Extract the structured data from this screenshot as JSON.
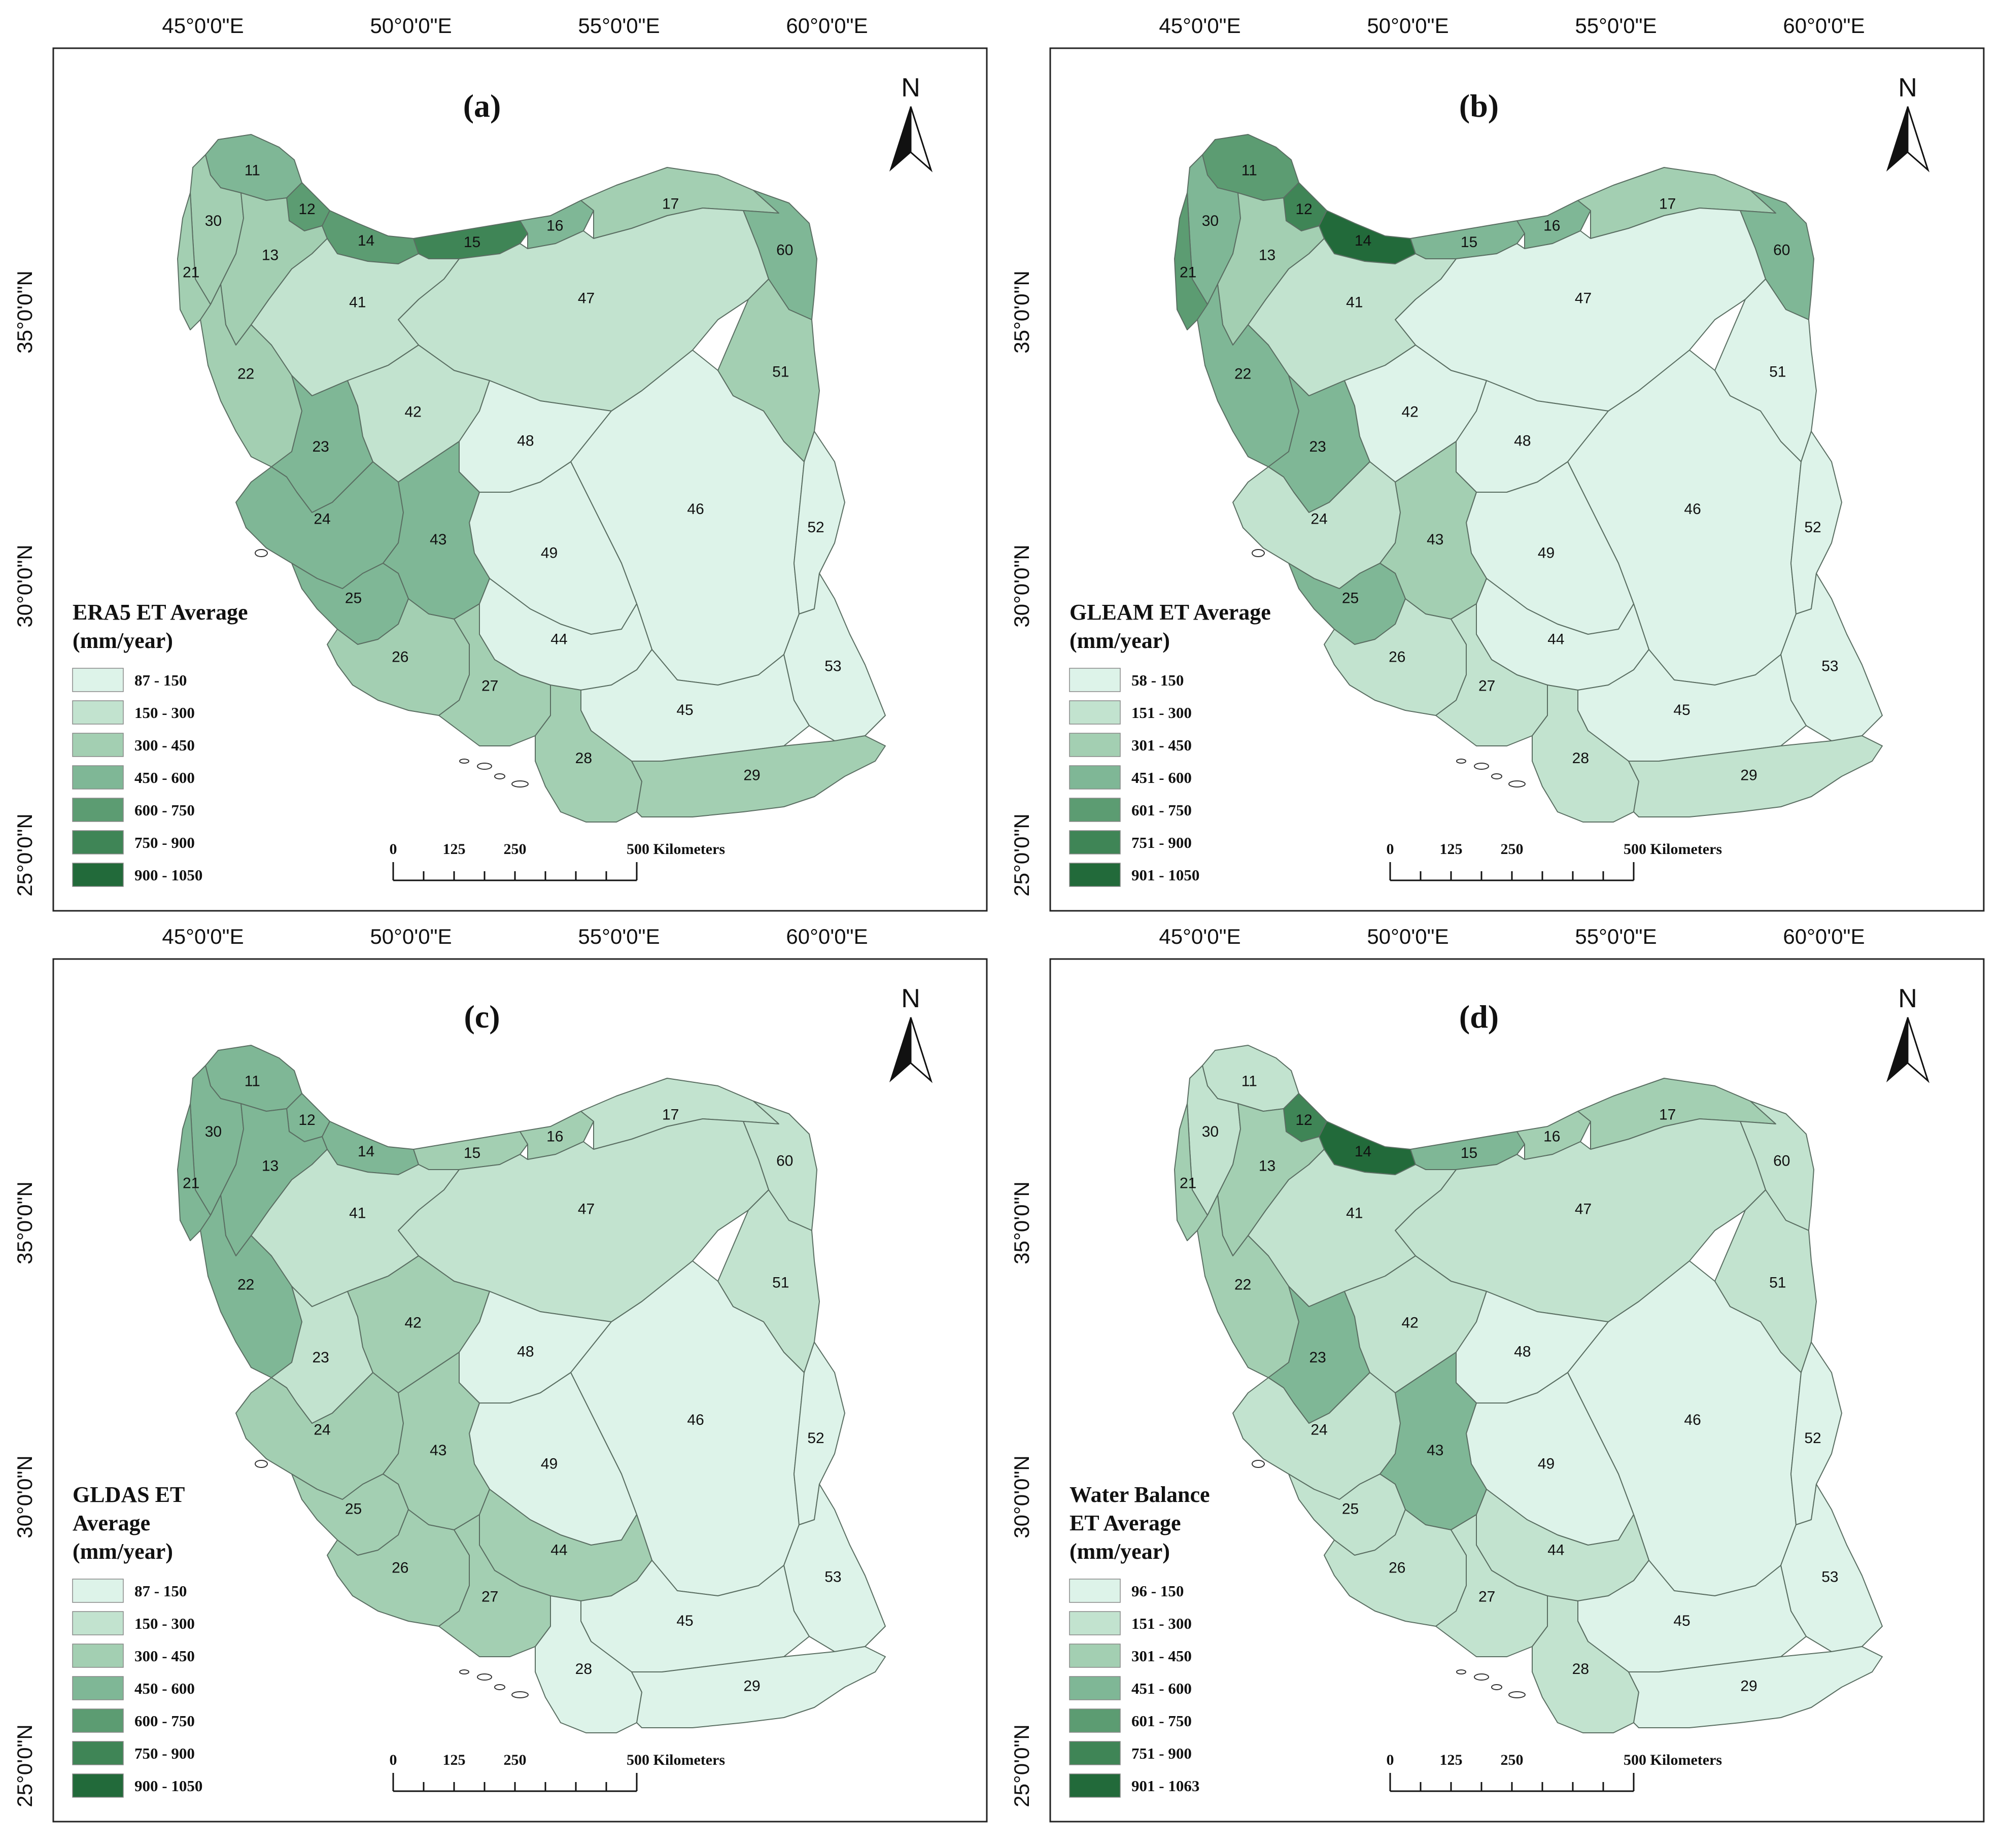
{
  "figure": {
    "lon_labels": [
      "45°0'0\"E",
      "50°0'0\"E",
      "55°0'0\"E",
      "60°0'0\"E"
    ],
    "lat_labels": [
      "35°0'0\"N",
      "30°0'0\"N",
      "25°0'0\"N"
    ],
    "north_label": "N",
    "scalebar": {
      "ticks": [
        "0",
        "125",
        "250"
      ],
      "end_label": "500 Kilometers"
    },
    "palette": [
      "#ddf3e9",
      "#c2e3cf",
      "#a3cfb2",
      "#7fb796",
      "#5c9c72",
      "#3f8556",
      "#226a3a"
    ],
    "panels": [
      {
        "id": "a",
        "title": "(a)",
        "legend_title": [
          "ERA5 ET Average",
          "(mm/year)"
        ],
        "legend_items": [
          "87 - 150",
          "150 - 300",
          "300 - 450",
          "450 - 600",
          "600 - 750",
          "750 - 900",
          "900 - 1050"
        ],
        "basins": {
          "11": 3,
          "12": 4,
          "13": 2,
          "14": 4,
          "15": 5,
          "16": 3,
          "17": 2,
          "21": 2,
          "22": 2,
          "23": 3,
          "24": 3,
          "25": 3,
          "26": 2,
          "27": 2,
          "28": 2,
          "29": 2,
          "30": 2,
          "41": 1,
          "42": 1,
          "43": 3,
          "44": 0,
          "45": 0,
          "46": 0,
          "47": 1,
          "48": 0,
          "49": 0,
          "51": 2,
          "52": 0,
          "53": 0,
          "60": 3
        }
      },
      {
        "id": "b",
        "title": "(b)",
        "legend_title": [
          "GLEAM ET Average",
          "(mm/year)"
        ],
        "legend_items": [
          "58 - 150",
          "151 - 300",
          "301 - 450",
          "451 - 600",
          "601 - 750",
          "751 - 900",
          "901 - 1050"
        ],
        "basins": {
          "11": 4,
          "12": 5,
          "13": 2,
          "14": 6,
          "15": 3,
          "16": 3,
          "17": 2,
          "21": 4,
          "22": 3,
          "23": 3,
          "24": 1,
          "25": 3,
          "26": 1,
          "27": 1,
          "28": 1,
          "29": 1,
          "30": 3,
          "41": 1,
          "42": 0,
          "43": 2,
          "44": 0,
          "45": 0,
          "46": 0,
          "47": 0,
          "48": 0,
          "49": 0,
          "51": 0,
          "52": 0,
          "53": 0,
          "60": 3
        }
      },
      {
        "id": "c",
        "title": "(c)",
        "legend_title": [
          "GLDAS ET",
          "Average",
          "(mm/year)"
        ],
        "legend_items": [
          "87 - 150",
          "150 - 300",
          "300 - 450",
          "450 - 600",
          "600 - 750",
          "750 - 900",
          "900 - 1050"
        ],
        "basins": {
          "11": 3,
          "12": 3,
          "13": 3,
          "14": 3,
          "15": 2,
          "16": 2,
          "17": 1,
          "21": 3,
          "22": 3,
          "23": 1,
          "24": 2,
          "25": 2,
          "26": 2,
          "27": 2,
          "28": 0,
          "29": 0,
          "30": 3,
          "41": 1,
          "42": 2,
          "43": 2,
          "44": 2,
          "45": 0,
          "46": 0,
          "47": 1,
          "48": 0,
          "49": 0,
          "51": 1,
          "52": 0,
          "53": 0,
          "60": 1
        }
      },
      {
        "id": "d",
        "title": "(d)",
        "legend_title": [
          "Water Balance",
          "ET Average",
          "(mm/year)"
        ],
        "legend_items": [
          "96 - 150",
          "151 - 300",
          "301 - 450",
          "451 - 600",
          "601 - 750",
          "751 - 900",
          "901 - 1063"
        ],
        "basins": {
          "11": 1,
          "12": 5,
          "13": 2,
          "14": 6,
          "15": 3,
          "16": 2,
          "17": 2,
          "21": 2,
          "22": 2,
          "23": 3,
          "24": 1,
          "25": 1,
          "26": 1,
          "27": 1,
          "28": 1,
          "29": 0,
          "30": 1,
          "41": 1,
          "42": 1,
          "43": 3,
          "44": 1,
          "45": 0,
          "46": 0,
          "47": 1,
          "48": 0,
          "49": 0,
          "51": 1,
          "52": 0,
          "53": 0,
          "60": 1
        }
      }
    ]
  }
}
